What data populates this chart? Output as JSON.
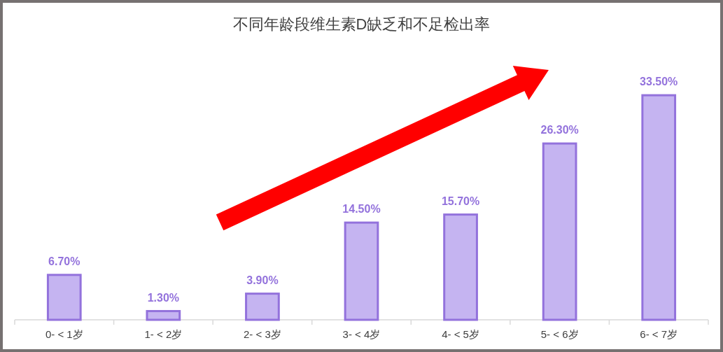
{
  "chart_data": {
    "type": "bar",
    "title": "不同年龄段维生素D缺乏和不足检出率",
    "categories": [
      "0- < 1岁",
      "1- < 2岁",
      "2- < 3岁",
      "3- < 4岁",
      "4- < 5岁",
      "5- < 6岁",
      "6- < 7岁"
    ],
    "values": [
      6.7,
      1.3,
      3.9,
      14.5,
      15.7,
      26.3,
      33.5
    ],
    "value_labels": [
      "6.70%",
      "1.30%",
      "3.90%",
      "14.50%",
      "15.70%",
      "26.30%",
      "33.50%"
    ],
    "color": "#c5b4f1"
  }
}
